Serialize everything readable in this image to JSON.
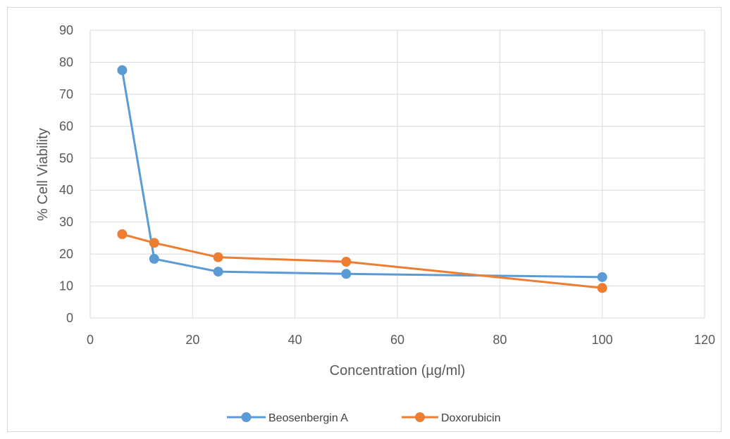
{
  "chart_data": {
    "type": "line",
    "title": "",
    "xlabel": "Concentration (µg/ml)",
    "ylabel": "% Cell Viability",
    "xlim": [
      0,
      120
    ],
    "ylim": [
      0,
      90
    ],
    "xticks": [
      0,
      20,
      40,
      60,
      80,
      100,
      120
    ],
    "yticks": [
      0,
      10,
      20,
      30,
      40,
      50,
      60,
      70,
      80,
      90
    ],
    "grid": true,
    "legend_position": "bottom",
    "series": [
      {
        "name": "Beosenbergin A",
        "color": "#5b9bd5",
        "points": [
          [
            6.25,
            77.5
          ],
          [
            12.5,
            18.5
          ],
          [
            25,
            14.5
          ],
          [
            50,
            13.8
          ],
          [
            100,
            12.8
          ]
        ]
      },
      {
        "name": "Doxorubicin",
        "color": "#ed7d31",
        "points": [
          [
            6.25,
            26.2
          ],
          [
            12.5,
            23.5
          ],
          [
            25,
            19.0
          ],
          [
            50,
            17.6
          ],
          [
            100,
            9.4
          ]
        ]
      }
    ]
  }
}
